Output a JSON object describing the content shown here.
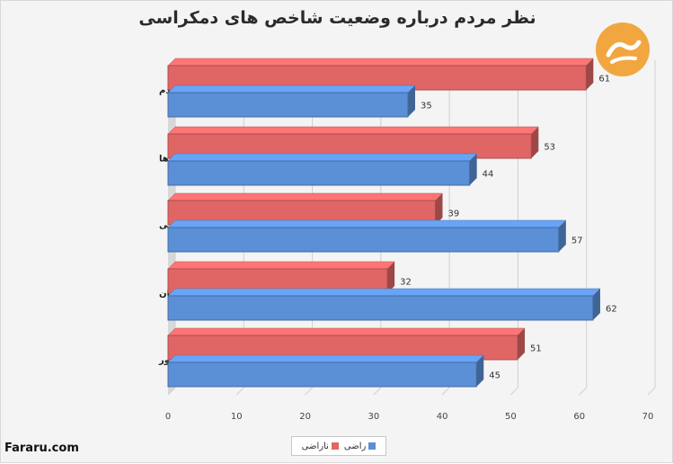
{
  "chart_data": {
    "type": "bar",
    "orientation": "horizontal",
    "title": "نظر مردم درباره وضعیت شاخص های دمکراسی",
    "categories": [
      "اهمیت دادن سیاستمداران به فکر مردم",
      "برخورد عادلانه دادگاه ها",
      "شانس ارتقای شرایط زندگی",
      "وضعیت آزادی بیان",
      "وضعیت دمکراسی در کشور"
    ],
    "series": [
      {
        "name": "ناراضی",
        "color": "#e06666",
        "values": [
          61,
          53,
          39,
          32,
          51
        ]
      },
      {
        "name": "راضی",
        "color": "#5b8fd6",
        "values": [
          35,
          44,
          57,
          62,
          45
        ]
      }
    ],
    "xlim": [
      0,
      70
    ],
    "xticks": [
      "0",
      "10",
      "20",
      "30",
      "40",
      "50",
      "60",
      "70"
    ],
    "grid": true,
    "legend": "bottom"
  },
  "watermark": "Fararu.com",
  "logo": "fararu-logo-icon"
}
